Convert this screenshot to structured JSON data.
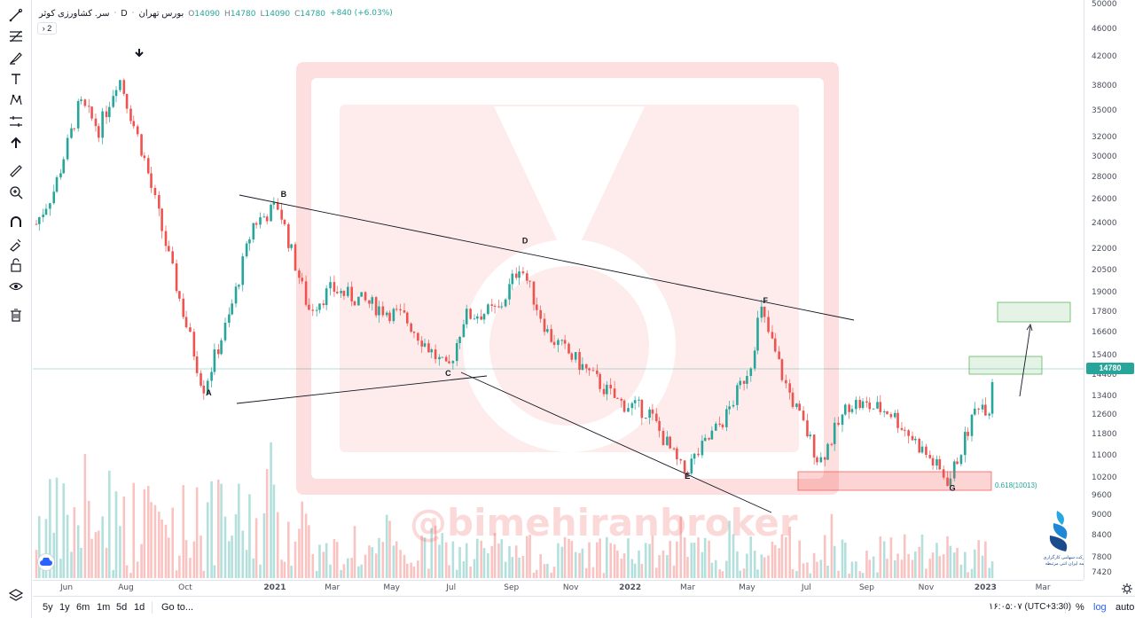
{
  "legend": {
    "symbol": "سر. کشاورزی کوثر",
    "interval": "D",
    "exchange": "بورس تهران",
    "open_key": "O",
    "open": "14090",
    "high_key": "H",
    "high": "14780",
    "low_key": "L",
    "low": "14090",
    "close_key": "C",
    "close": "14780",
    "change": "+840 (+6.03%)",
    "indicator_toggle": "› 2"
  },
  "price_axis": {
    "ticks": [
      "50000",
      "46000",
      "42000",
      "38000",
      "35000",
      "32000",
      "30000",
      "28000",
      "26000",
      "24000",
      "22000",
      "20500",
      "19000",
      "17800",
      "16600",
      "15400",
      "14400",
      "13400",
      "12600",
      "11800",
      "11000",
      "10200",
      "9600",
      "9000",
      "8400",
      "7800",
      "7420"
    ],
    "current_price": "14780"
  },
  "time_axis": {
    "ticks": [
      "Jun",
      "Aug",
      "Oct",
      "2021",
      "Mar",
      "May",
      "Jul",
      "Sep",
      "Nov",
      "2022",
      "Mar",
      "May",
      "Jul",
      "Sep",
      "Nov",
      "2023",
      "Mar"
    ]
  },
  "bottom_bar": {
    "ranges": [
      "5y",
      "1y",
      "6m",
      "1m",
      "5d",
      "1d"
    ],
    "goto": "Go to...",
    "clock": "۱۶:۰۵:۰۷ (UTC+3:30)",
    "percent": "%",
    "log": "log",
    "auto": "auto"
  },
  "watermark": "@bimehiranbroker",
  "broker_logo_text": {
    "line1": "شرکت سهامی کارگزاری",
    "line2": "بیمه ایران انتی مرتبطه"
  },
  "colors": {
    "up": "#26a69a",
    "down": "#ef5350",
    "accent": "#2962ff",
    "price_tag": "#26a69a"
  },
  "chart_data": {
    "type": "candlestick",
    "title": "سر. کشاورزی کوثر",
    "scale": "log",
    "ylim": [
      7420,
      50000
    ],
    "x_range": [
      "2020-05",
      "2023-03"
    ],
    "grid": false,
    "last_price": 14780,
    "price_path": [
      {
        "date": "2020-05-01",
        "price": 24000
      },
      {
        "date": "2020-05-20",
        "price": 27000
      },
      {
        "date": "2020-06-15",
        "price": 36000
      },
      {
        "date": "2020-07-05",
        "price": 33000
      },
      {
        "date": "2020-07-25",
        "price": 39500
      },
      {
        "date": "2020-08-20",
        "price": 30000
      },
      {
        "date": "2020-09-20",
        "price": 20000
      },
      {
        "date": "2020-10-20",
        "price": 13800
      },
      {
        "date": "2020-11-15",
        "price": 17500
      },
      {
        "date": "2020-12-10",
        "price": 24000
      },
      {
        "date": "2021-01-05",
        "price": 25500
      },
      {
        "date": "2021-02-05",
        "price": 18000
      },
      {
        "date": "2021-03-01",
        "price": 19300
      },
      {
        "date": "2021-05-15",
        "price": 17500
      },
      {
        "date": "2021-06-28",
        "price": 14600
      },
      {
        "date": "2021-07-15",
        "price": 17600
      },
      {
        "date": "2021-08-20",
        "price": 18000
      },
      {
        "date": "2021-09-10",
        "price": 21000
      },
      {
        "date": "2021-10-10",
        "price": 16500
      },
      {
        "date": "2021-11-15",
        "price": 14800
      },
      {
        "date": "2021-12-20",
        "price": 13200
      },
      {
        "date": "2022-01-20",
        "price": 12800
      },
      {
        "date": "2022-02-25",
        "price": 10400
      },
      {
        "date": "2022-04-10",
        "price": 12600
      },
      {
        "date": "2022-05-05",
        "price": 15000
      },
      {
        "date": "2022-05-15",
        "price": 18100
      },
      {
        "date": "2022-06-10",
        "price": 14000
      },
      {
        "date": "2022-07-15",
        "price": 10800
      },
      {
        "date": "2022-08-15",
        "price": 13200
      },
      {
        "date": "2022-09-25",
        "price": 12800
      },
      {
        "date": "2022-10-25",
        "price": 11400
      },
      {
        "date": "2022-11-25",
        "price": 10100
      },
      {
        "date": "2022-12-25",
        "price": 13200
      },
      {
        "date": "2023-01-05",
        "price": 12900
      },
      {
        "date": "2023-01-10",
        "price": 14780
      }
    ],
    "annotations": [
      {
        "label": "A",
        "date": "2020-10-25",
        "price": 13500
      },
      {
        "label": "B",
        "date": "2021-01-10",
        "price": 26300
      },
      {
        "label": "C",
        "date": "2021-06-28",
        "price": 14400
      },
      {
        "label": "D",
        "date": "2021-09-15",
        "price": 22500
      },
      {
        "label": "E",
        "date": "2022-03-01",
        "price": 10200
      },
      {
        "label": "F",
        "date": "2022-05-20",
        "price": 18400
      },
      {
        "label": "G",
        "date": "2022-11-28",
        "price": 9800
      }
    ],
    "fib_label": "0.618(10013)",
    "arrow_marker": {
      "date": "2020-07-25",
      "price": 41500
    }
  }
}
